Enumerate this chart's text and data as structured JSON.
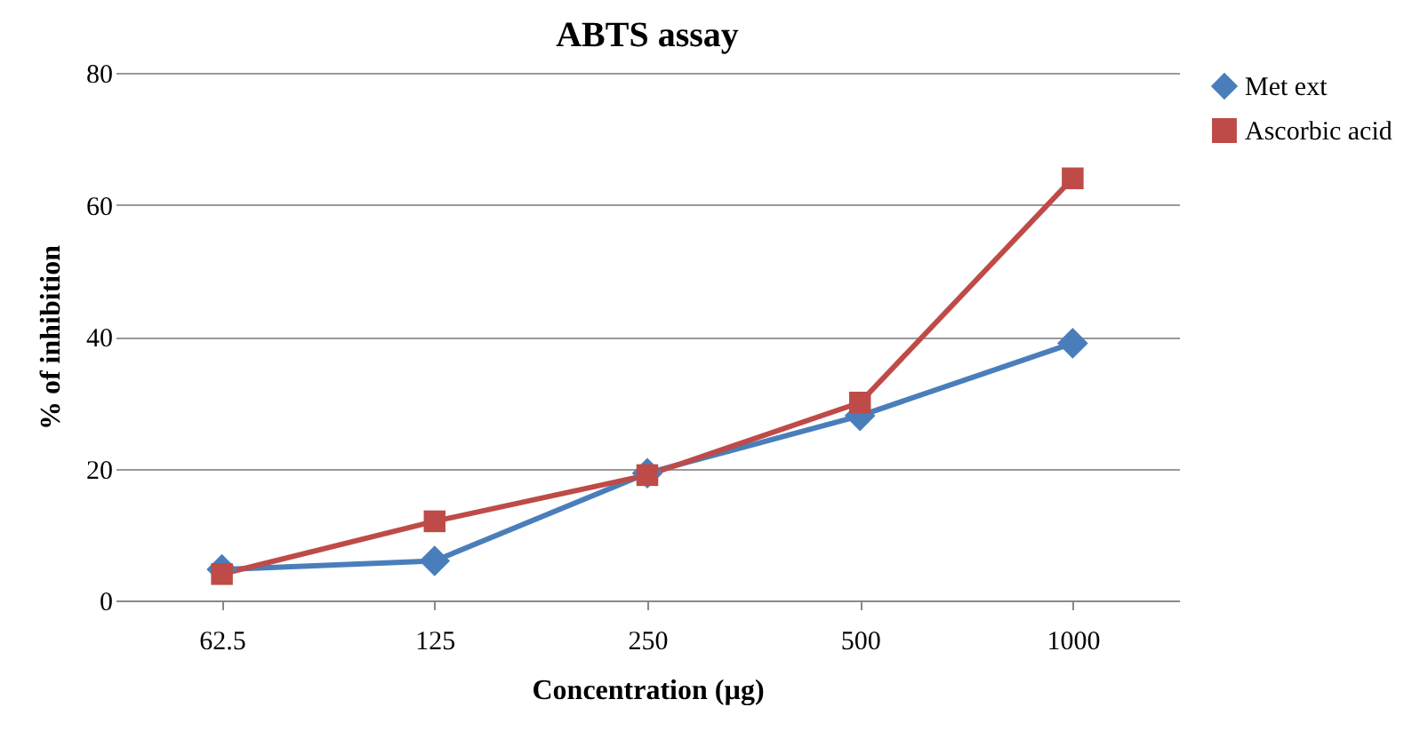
{
  "chart_data": {
    "type": "line",
    "title": "ABTS assay",
    "xlabel": "Concentration (µg)",
    "ylabel": "% of inhibition",
    "categories": [
      "62.5",
      "125",
      "250",
      "500",
      "1000"
    ],
    "series": [
      {
        "name": "Met ext",
        "color": "#4a7ebb",
        "marker": "diamond",
        "values": [
          4.7,
          6,
          19.3,
          28,
          39
        ]
      },
      {
        "name": "Ascorbic acid",
        "color": "#be4b48",
        "marker": "square",
        "values": [
          4,
          12,
          19,
          30,
          64
        ]
      }
    ],
    "ylim": [
      0,
      80
    ],
    "yticks": [
      0,
      20,
      40,
      60,
      80
    ],
    "grid": "y",
    "legend": "right",
    "line_style": "solid"
  }
}
